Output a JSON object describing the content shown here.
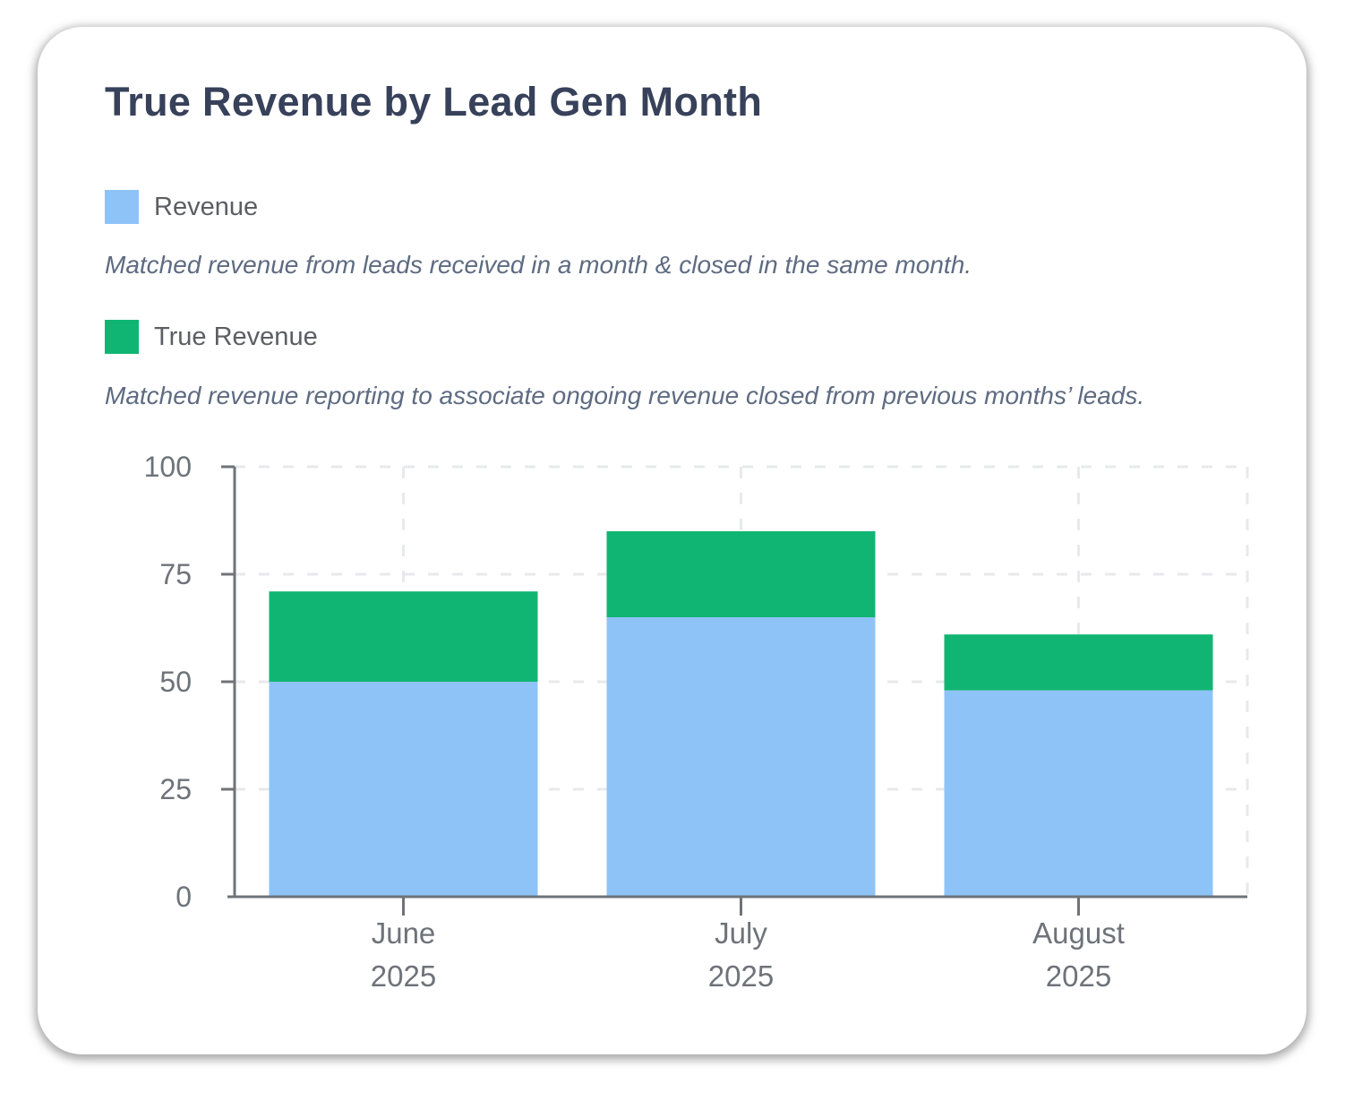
{
  "card": {
    "title": "True Revenue by Lead Gen Month"
  },
  "legend": [
    {
      "label": "Revenue",
      "color": "#8EC3F8",
      "description": "Matched revenue from leads received in a month & closed in the same month."
    },
    {
      "label": "True Revenue",
      "color": "#11B573",
      "description": "Matched revenue reporting to associate ongoing revenue closed from previous months’ leads."
    }
  ],
  "chart_data": {
    "type": "bar",
    "stacked": true,
    "title": "True Revenue by Lead Gen Month",
    "categories": [
      "June 2025",
      "July 2025",
      "August 2025"
    ],
    "category_lines": [
      [
        "June",
        "2025"
      ],
      [
        "July",
        "2025"
      ],
      [
        "August",
        "2025"
      ]
    ],
    "series": [
      {
        "name": "Revenue",
        "color": "#8EC3F8",
        "values": [
          50,
          65,
          48
        ]
      },
      {
        "name": "True Revenue",
        "color": "#11B573",
        "values": [
          21,
          20,
          13
        ]
      }
    ],
    "stack_totals": [
      71,
      85,
      61
    ],
    "xlabel": "",
    "ylabel": "",
    "ylim": [
      0,
      100
    ],
    "yticks": [
      0,
      25,
      50,
      75,
      100
    ],
    "grid": true,
    "legend_position": "top-left-outside",
    "axis_color": "#6F7377",
    "grid_color": "#E8E9EC",
    "tick_label_color": "#6E7379"
  }
}
